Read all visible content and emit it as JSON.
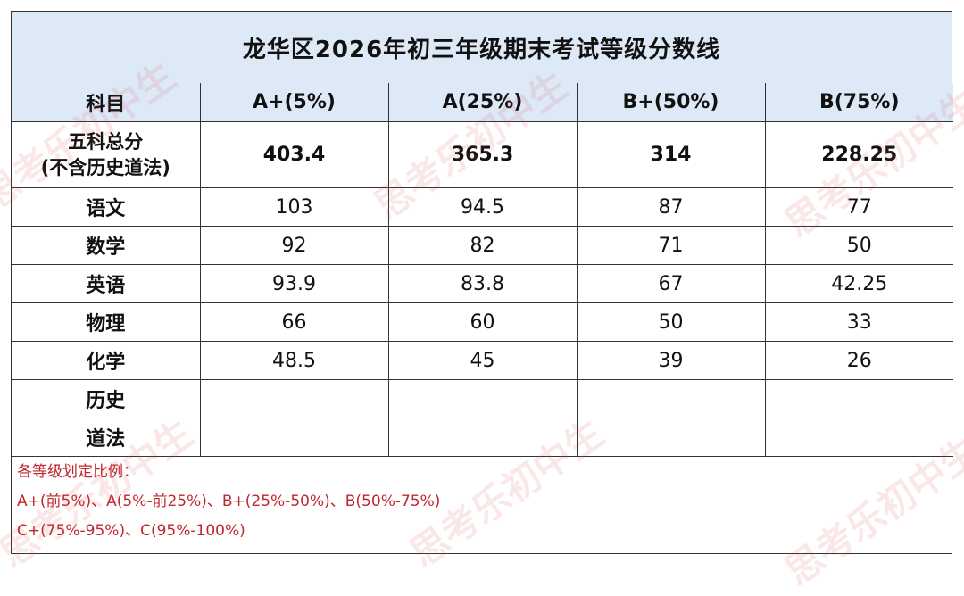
{
  "title": "龙华区2026年初三年级期末考试等级分数线",
  "header": {
    "subject": "科目",
    "levels": [
      "A+(5%)",
      "A(25%)",
      "B+(50%)",
      "B(75%)"
    ]
  },
  "total": {
    "label_line1": "五科总分",
    "label_line2": "(不含历史道法)",
    "values": [
      "403.4",
      "365.3",
      "314",
      "228.25"
    ]
  },
  "subjects": [
    {
      "name": "语文",
      "values": [
        "103",
        "94.5",
        "87",
        "77"
      ]
    },
    {
      "name": "数学",
      "values": [
        "92",
        "82",
        "71",
        "50"
      ]
    },
    {
      "name": "英语",
      "values": [
        "93.9",
        "83.8",
        "67",
        "42.25"
      ]
    },
    {
      "name": "物理",
      "values": [
        "66",
        "60",
        "50",
        "33"
      ]
    },
    {
      "name": "化学",
      "values": [
        "48.5",
        "45",
        "39",
        "26"
      ]
    },
    {
      "name": "历史",
      "values": [
        "",
        "",
        "",
        ""
      ]
    },
    {
      "name": "道法",
      "values": [
        "",
        "",
        "",
        ""
      ]
    }
  ],
  "notes": {
    "heading": "各等级划定比例：",
    "line1": "A+(前5%)、A(5%-前25%)、B+(25%-50%)、B(50%-75%)",
    "line2": "C+(75%-95%)、C(95%-100%)"
  },
  "watermark": "思考乐初中生"
}
